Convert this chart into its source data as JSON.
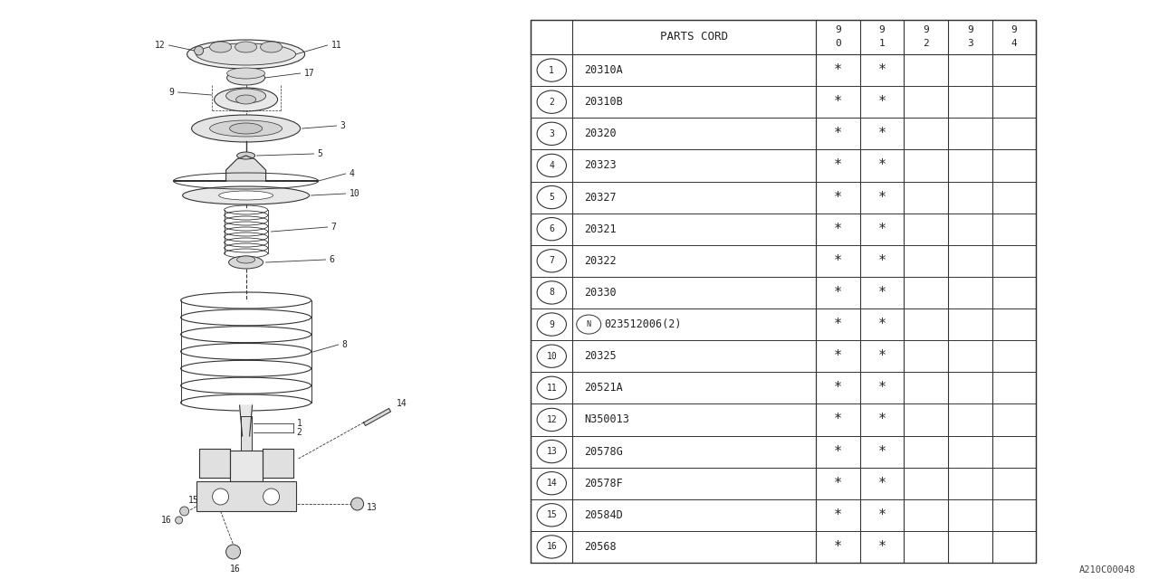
{
  "bg_color": "#ffffff",
  "line_color": "#333333",
  "table": {
    "header_col": "PARTS CORD",
    "year_cols": [
      "9\n0",
      "9\n1",
      "9\n2",
      "9\n3",
      "9\n4"
    ],
    "rows": [
      {
        "num": "1",
        "code": "20310A",
        "marks": [
          true,
          true,
          false,
          false,
          false
        ]
      },
      {
        "num": "2",
        "code": "20310B",
        "marks": [
          true,
          true,
          false,
          false,
          false
        ]
      },
      {
        "num": "3",
        "code": "20320",
        "marks": [
          true,
          true,
          false,
          false,
          false
        ]
      },
      {
        "num": "4",
        "code": "20323",
        "marks": [
          true,
          true,
          false,
          false,
          false
        ]
      },
      {
        "num": "5",
        "code": "20327",
        "marks": [
          true,
          true,
          false,
          false,
          false
        ]
      },
      {
        "num": "6",
        "code": "20321",
        "marks": [
          true,
          true,
          false,
          false,
          false
        ]
      },
      {
        "num": "7",
        "code": "20322",
        "marks": [
          true,
          true,
          false,
          false,
          false
        ]
      },
      {
        "num": "8",
        "code": "20330",
        "marks": [
          true,
          true,
          false,
          false,
          false
        ]
      },
      {
        "num": "9",
        "code": "023512006(2)",
        "marks": [
          true,
          true,
          false,
          false,
          false
        ],
        "n_prefix": true
      },
      {
        "num": "10",
        "code": "20325",
        "marks": [
          true,
          true,
          false,
          false,
          false
        ]
      },
      {
        "num": "11",
        "code": "20521A",
        "marks": [
          true,
          true,
          false,
          false,
          false
        ]
      },
      {
        "num": "12",
        "code": "N350013",
        "marks": [
          true,
          true,
          false,
          false,
          false
        ]
      },
      {
        "num": "13",
        "code": "20578G",
        "marks": [
          true,
          true,
          false,
          false,
          false
        ]
      },
      {
        "num": "14",
        "code": "20578F",
        "marks": [
          true,
          true,
          false,
          false,
          false
        ]
      },
      {
        "num": "15",
        "code": "20584D",
        "marks": [
          true,
          true,
          false,
          false,
          false
        ]
      },
      {
        "num": "16",
        "code": "20568",
        "marks": [
          true,
          true,
          false,
          false,
          false
        ]
      }
    ]
  },
  "diagram_label": "A210C00048"
}
